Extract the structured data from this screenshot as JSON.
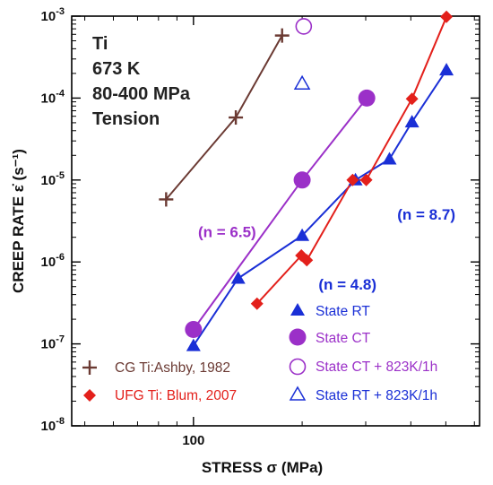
{
  "chart_data": {
    "type": "scatter",
    "x_scale": "log",
    "y_scale": "log",
    "xlim": [
      46,
      620
    ],
    "ylim": [
      1e-08,
      0.001
    ],
    "xlabel": "STRESS σ (MPa)",
    "ylabel": "CREEP RATE ε̇ (s⁻¹)",
    "x_ticks": [
      {
        "value": 100,
        "label": "100"
      }
    ],
    "y_ticks": [
      {
        "value": 0.001,
        "base": "10",
        "exp": "-3"
      },
      {
        "value": 0.0001,
        "base": "10",
        "exp": "-4"
      },
      {
        "value": 1e-05,
        "base": "10",
        "exp": "-5"
      },
      {
        "value": 1e-06,
        "base": "10",
        "exp": "-6"
      },
      {
        "value": 1e-07,
        "base": "10",
        "exp": "-7"
      },
      {
        "value": 1e-08,
        "base": "10",
        "exp": "-8"
      }
    ],
    "info_lines": [
      "Ti",
      "673 K",
      "80-400 MPa",
      "Tension"
    ],
    "series": [
      {
        "name": "CG Ti:Ashby, 1982",
        "marker": "plus",
        "color": "#6b3a33",
        "line": true,
        "points": [
          [
            84,
            5.8e-06
          ],
          [
            131,
            5.8e-05
          ],
          [
            176,
            0.00058
          ]
        ]
      },
      {
        "name": "State CT",
        "marker": "circle-filled",
        "color": "#9b30c8",
        "line": true,
        "points": [
          [
            100,
            1.5e-07
          ],
          [
            200,
            1e-05
          ],
          [
            302,
            0.0001
          ]
        ]
      },
      {
        "name": "State RT",
        "marker": "triangle-filled",
        "color": "#1a2fd6",
        "line": true,
        "points": [
          [
            100,
            9.5e-08
          ],
          [
            133,
            6.3e-07
          ],
          [
            200,
            2.1e-06
          ],
          [
            281,
            1e-05
          ],
          [
            349,
            1.8e-05
          ],
          [
            403,
            5.1e-05
          ],
          [
            502,
            0.00022
          ]
        ]
      },
      {
        "name": "UFG Ti: Blum, 2007",
        "marker": "diamond-filled",
        "color": "#e3201b",
        "line": true,
        "points": [
          [
            150,
            3.1e-07
          ],
          [
            199,
            1.2e-06
          ],
          [
            206,
            1.05e-06
          ],
          [
            276,
            1e-05
          ],
          [
            301,
            1e-05
          ],
          [
            403,
            9.8e-05
          ],
          [
            502,
            0.00098
          ]
        ]
      },
      {
        "name": "State CT + 823K/1h",
        "marker": "circle-open",
        "color": "#9b30c8",
        "line": false,
        "points": [
          [
            202,
            0.00075
          ]
        ]
      },
      {
        "name": "State RT + 823K/1h",
        "marker": "triangle-open",
        "color": "#1a2fd6",
        "line": false,
        "points": [
          [
            200,
            0.00015
          ]
        ]
      }
    ],
    "annotations": [
      {
        "text": "(n = 6.5)",
        "color": "#9b30c8",
        "x": 103,
        "y": 2e-06
      },
      {
        "text": "(n = 4.8)",
        "color": "#1a2fd6",
        "x": 222,
        "y": 4.6e-07
      },
      {
        "text": "(n = 8.7)",
        "color": "#1a2fd6",
        "x": 367,
        "y": 3.3e-06
      }
    ],
    "legend": {
      "placement": "bottom",
      "entries": [
        {
          "series": "State RT",
          "marker": "triangle-filled",
          "color": "#1a2fd6",
          "text_color": "#1a2fd6"
        },
        {
          "series": "State CT",
          "marker": "circle-filled",
          "color": "#9b30c8",
          "text_color": "#9b30c8"
        },
        {
          "series": "State CT + 823K/1h",
          "marker": "circle-open",
          "color": "#9b30c8",
          "text_color": "#9b30c8"
        },
        {
          "series": "State RT + 823K/1h",
          "marker": "triangle-open",
          "color": "#1a2fd6",
          "text_color": "#1a2fd6"
        },
        {
          "series": "CG Ti:Ashby, 1982",
          "marker": "plus",
          "color": "#6b3a33",
          "text_color": "#6b3a33"
        },
        {
          "series": "UFG Ti: Blum, 2007",
          "marker": "diamond-filled",
          "color": "#e3201b",
          "text_color": "#e3201b"
        }
      ]
    },
    "grid": false
  }
}
